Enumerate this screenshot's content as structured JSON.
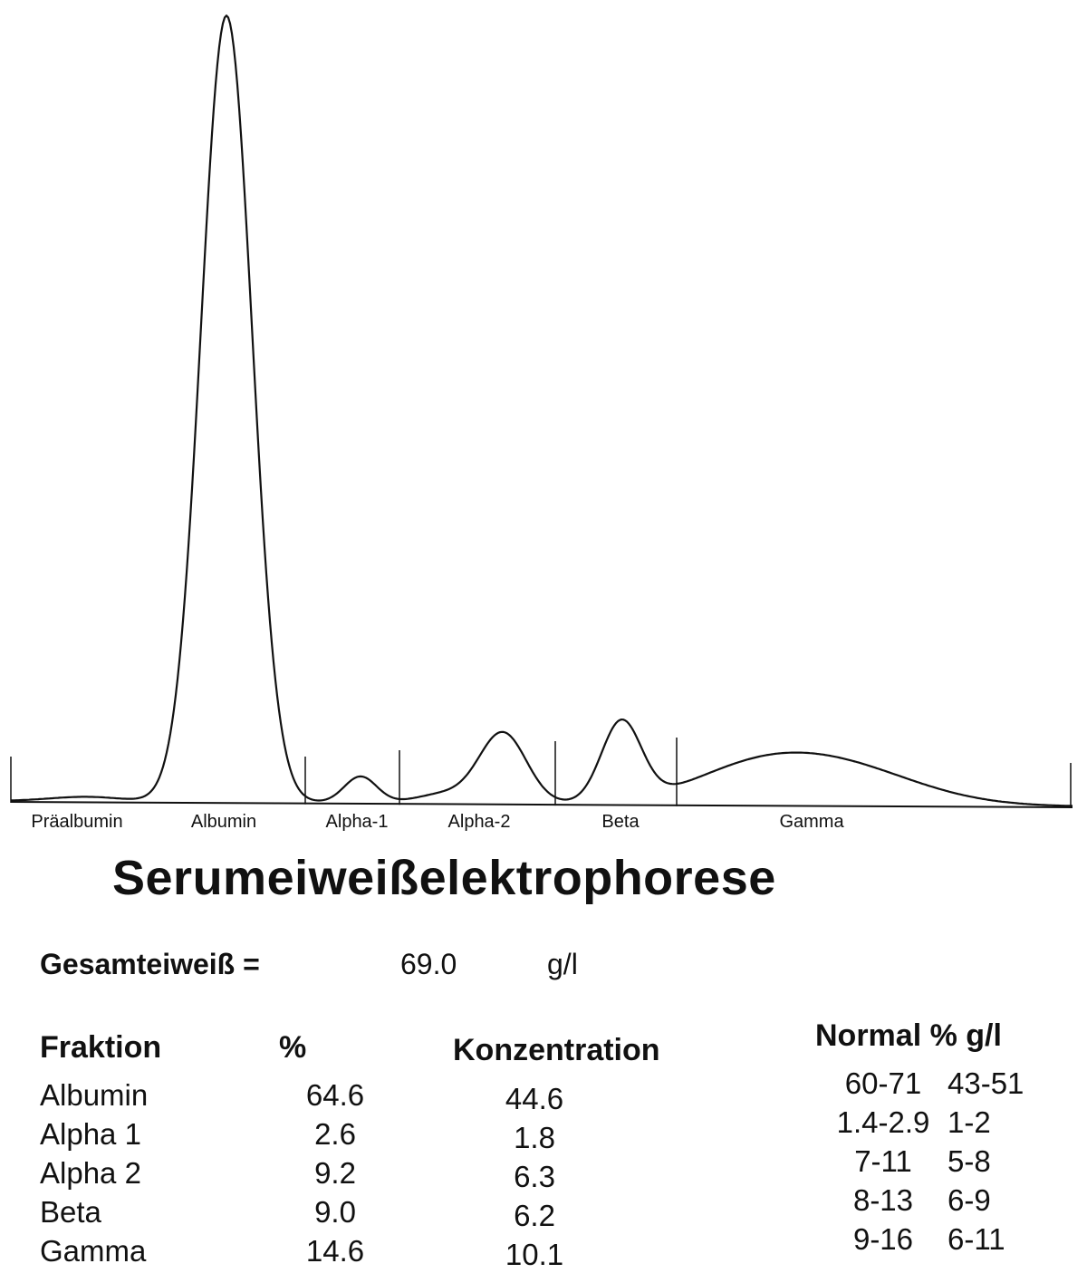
{
  "chart_data": {
    "type": "line",
    "title": "Serumeiweißelektrophorese",
    "xlabel": "",
    "ylabel": "",
    "fraction_labels": [
      "Präalbumin",
      "Albumin",
      "Alpha-1",
      "Alpha-2",
      "Beta",
      "Gamma"
    ],
    "fractions": [
      "Präalbumin",
      "Albumin",
      "Alpha-1",
      "Alpha-2",
      "Beta",
      "Gamma"
    ],
    "grid": false
  },
  "summary": {
    "total_label": "Gesamteiweiß =",
    "total_value": "69.0",
    "total_unit": "g/l"
  },
  "table": {
    "headers": {
      "fraktion": "Fraktion",
      "percent": "%",
      "konzentration": "Konzentration",
      "normal": "Normal %  g/l"
    },
    "rows": [
      {
        "fraktion": "Albumin",
        "percent": "64.6",
        "konzentration": "44.6",
        "normal_percent": "60-71",
        "normal_gl": "43-51"
      },
      {
        "fraktion": "Alpha 1",
        "percent": "2.6",
        "konzentration": "1.8",
        "normal_percent": "1.4-2.9",
        "normal_gl": "1-2"
      },
      {
        "fraktion": "Alpha 2",
        "percent": "9.2",
        "konzentration": "6.3",
        "normal_percent": "7-11",
        "normal_gl": "5-8"
      },
      {
        "fraktion": "Beta",
        "percent": "9.0",
        "konzentration": "6.2",
        "normal_percent": "8-13",
        "normal_gl": "6-9"
      },
      {
        "fraktion": "Gamma",
        "percent": "14.6",
        "konzentration": "10.1",
        "normal_percent": "9-16",
        "normal_gl": "6-11"
      }
    ]
  }
}
